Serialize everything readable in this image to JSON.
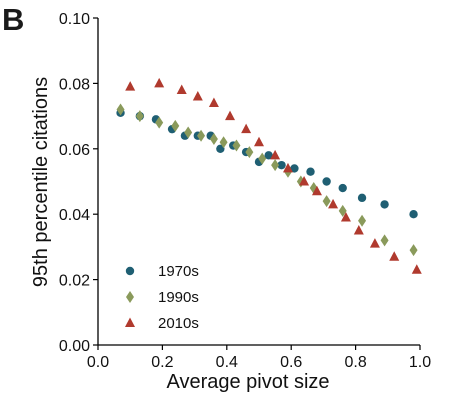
{
  "panel_label": "B",
  "chart_data": {
    "type": "scatter",
    "title": "",
    "xlabel": "Average pivot size",
    "ylabel": "95th percentile citations",
    "xlim": [
      0.0,
      1.0
    ],
    "ylim": [
      0.0,
      0.1
    ],
    "xticks": [
      "0.0",
      "0.2",
      "0.4",
      "0.6",
      "0.8",
      "1.0"
    ],
    "yticks": [
      "0.00",
      "0.02",
      "0.04",
      "0.06",
      "0.08",
      "0.10"
    ],
    "grid": false,
    "legend": "bottom-left",
    "series": [
      {
        "name": "1970s",
        "marker": "circle",
        "color": "#1f5f73",
        "x": [
          0.07,
          0.13,
          0.18,
          0.23,
          0.27,
          0.31,
          0.35,
          0.38,
          0.42,
          0.46,
          0.5,
          0.53,
          0.57,
          0.61,
          0.66,
          0.71,
          0.76,
          0.82,
          0.89,
          0.98
        ],
        "y": [
          0.071,
          0.07,
          0.069,
          0.066,
          0.064,
          0.064,
          0.064,
          0.06,
          0.061,
          0.059,
          0.056,
          0.058,
          0.055,
          0.054,
          0.053,
          0.05,
          0.048,
          0.045,
          0.043,
          0.04
        ]
      },
      {
        "name": "1990s",
        "marker": "diamond",
        "color": "#8a9a5b",
        "x": [
          0.07,
          0.13,
          0.19,
          0.24,
          0.28,
          0.32,
          0.36,
          0.39,
          0.43,
          0.47,
          0.51,
          0.55,
          0.59,
          0.63,
          0.67,
          0.71,
          0.76,
          0.82,
          0.89,
          0.98
        ],
        "y": [
          0.072,
          0.07,
          0.068,
          0.067,
          0.065,
          0.064,
          0.063,
          0.062,
          0.061,
          0.059,
          0.057,
          0.055,
          0.053,
          0.05,
          0.048,
          0.044,
          0.041,
          0.038,
          0.032,
          0.029
        ]
      },
      {
        "name": "2010s",
        "marker": "triangle",
        "color": "#b03a2e",
        "x": [
          0.1,
          0.19,
          0.26,
          0.31,
          0.36,
          0.41,
          0.46,
          0.5,
          0.55,
          0.59,
          0.64,
          0.68,
          0.73,
          0.77,
          0.81,
          0.86,
          0.92,
          0.99
        ],
        "y": [
          0.079,
          0.08,
          0.078,
          0.076,
          0.074,
          0.07,
          0.066,
          0.062,
          0.058,
          0.054,
          0.05,
          0.047,
          0.043,
          0.039,
          0.035,
          0.031,
          0.027,
          0.023
        ]
      }
    ]
  }
}
